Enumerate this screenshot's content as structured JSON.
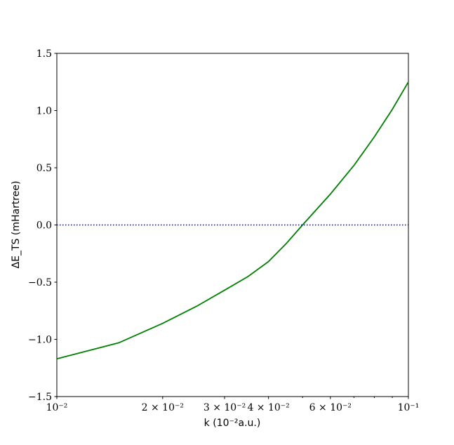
{
  "chart_data": {
    "type": "line",
    "xlabel": "k (10⁻²a.u.)",
    "ylabel": "ΔE_TS (mHartree)",
    "xscale": "log",
    "xlim": [
      0.01,
      0.1
    ],
    "ylim": [
      -1.5,
      1.5
    ],
    "xticks": [
      {
        "value": 0.01,
        "label": "10⁻²"
      },
      {
        "value": 0.02,
        "label": "2 × 10⁻²"
      },
      {
        "value": 0.03,
        "label": "3 × 10⁻²"
      },
      {
        "value": 0.04,
        "label": "4 × 10⁻²"
      },
      {
        "value": 0.06,
        "label": "6 × 10⁻²"
      },
      {
        "value": 0.1,
        "label": "10⁻¹"
      }
    ],
    "xminorticks": [
      0.05,
      0.07,
      0.08,
      0.09
    ],
    "yticks": [
      {
        "value": -1.5,
        "label": "−1.5"
      },
      {
        "value": -1.0,
        "label": "−1.0"
      },
      {
        "value": -0.5,
        "label": "−0.5"
      },
      {
        "value": 0,
        "label": "0.0"
      },
      {
        "value": 0.5,
        "label": "0.5"
      },
      {
        "value": 1.0,
        "label": "1.0"
      },
      {
        "value": 1.5,
        "label": "1.5"
      }
    ],
    "series": [
      {
        "color": "#008000",
        "style": "solid",
        "x": [
          0.01,
          0.015,
          0.02,
          0.025,
          0.03,
          0.035,
          0.04,
          0.045,
          0.05,
          0.06,
          0.07,
          0.08,
          0.09,
          0.1
        ],
        "values": [
          -1.17,
          -1.03,
          -0.86,
          -0.71,
          -0.57,
          -0.45,
          -0.32,
          -0.16,
          0.0,
          0.27,
          0.52,
          0.77,
          1.01,
          1.25
        ]
      },
      {
        "color": "#0000cc",
        "style": "dotted",
        "x": [
          0.01,
          0.1
        ],
        "values": [
          0,
          0
        ]
      }
    ]
  }
}
